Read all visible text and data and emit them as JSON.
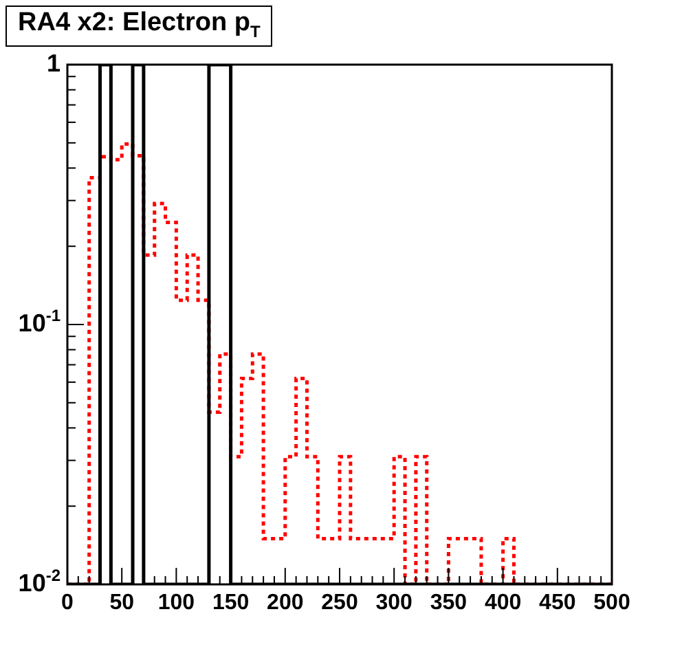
{
  "chart_data": {
    "type": "histogram",
    "title": "RA4 x2: Electron p$_{T}$",
    "bins": [
      0,
      10,
      20,
      30,
      40,
      50,
      60,
      70,
      80,
      90,
      100,
      110,
      120,
      130,
      140,
      150,
      160,
      170,
      180,
      190,
      200,
      210,
      220,
      230,
      240,
      250,
      260,
      270,
      280,
      290,
      300,
      310,
      320,
      330,
      340,
      350,
      360,
      370,
      380,
      390,
      400,
      410,
      420,
      430,
      440,
      450,
      460,
      470,
      480,
      490,
      500
    ],
    "series": [
      {
        "color": "#000000",
        "line_style": "solid",
        "values": [
          null,
          null,
          null,
          1,
          null,
          null,
          1,
          null,
          null,
          null,
          null,
          null,
          null,
          1,
          1,
          null,
          null,
          null,
          null,
          null,
          null,
          null,
          null,
          null,
          null,
          null,
          null,
          null,
          null,
          null,
          null,
          null,
          null,
          null,
          null,
          null,
          null,
          null,
          null,
          null,
          null,
          null,
          null,
          null,
          null,
          null,
          null,
          null,
          null,
          null
        ]
      },
      {
        "color": "#ff0000",
        "line_style": "dotted",
        "values": [
          null,
          null,
          0.367,
          0.442,
          0.431,
          0.495,
          0.446,
          0.185,
          0.292,
          0.247,
          0.124,
          0.185,
          0.124,
          0.046,
          0.077,
          0.031,
          0.062,
          0.077,
          0.015,
          0.015,
          0.031,
          0.062,
          0.031,
          0.015,
          0.015,
          0.031,
          0.015,
          0.015,
          0.015,
          0.015,
          0.031,
          null,
          0.031,
          null,
          null,
          0.015,
          0.015,
          0.015,
          null,
          null,
          0.015,
          null,
          null,
          null,
          null,
          null,
          null,
          null,
          null,
          null
        ]
      }
    ],
    "log": "y",
    "xlim": [
      0,
      500
    ],
    "ylim": [
      0.01,
      1
    ],
    "xticks": [
      0,
      {
        "value": 10,
        "label": null
      },
      {
        "value": 20,
        "label": null
      },
      {
        "value": 30,
        "label": null
      },
      {
        "value": 40,
        "label": null
      },
      50,
      {
        "value": 60,
        "label": null
      },
      {
        "value": 70,
        "label": null
      },
      {
        "value": 80,
        "label": null
      },
      {
        "value": 90,
        "label": null
      },
      100,
      {
        "value": 110,
        "label": null
      },
      {
        "value": 120,
        "label": null
      },
      {
        "value": 130,
        "label": null
      },
      {
        "value": 140,
        "label": null
      },
      150,
      {
        "value": 160,
        "label": null
      },
      {
        "value": 170,
        "label": null
      },
      {
        "value": 180,
        "label": null
      },
      {
        "value": 190,
        "label": null
      },
      200,
      {
        "value": 210,
        "label": null
      },
      {
        "value": 220,
        "label": null
      },
      {
        "value": 230,
        "label": null
      },
      {
        "value": 240,
        "label": null
      },
      250,
      {
        "value": 260,
        "label": null
      },
      {
        "value": 270,
        "label": null
      },
      {
        "value": 280,
        "label": null
      },
      {
        "value": 290,
        "label": null
      },
      300,
      {
        "value": 310,
        "label": null
      },
      {
        "value": 320,
        "label": null
      },
      {
        "value": 330,
        "label": null
      },
      {
        "value": 340,
        "label": null
      },
      350,
      {
        "value": 360,
        "label": null
      },
      {
        "value": 370,
        "label": null
      },
      {
        "value": 380,
        "label": null
      },
      {
        "value": 390,
        "label": null
      },
      400,
      {
        "value": 410,
        "label": null
      },
      {
        "value": 420,
        "label": null
      },
      {
        "value": 430,
        "label": null
      },
      {
        "value": 440,
        "label": null
      },
      450,
      {
        "value": 460,
        "label": null
      },
      {
        "value": 470,
        "label": null
      },
      {
        "value": 480,
        "label": null
      },
      {
        "value": 490,
        "label": null
      },
      500
    ],
    "yticks": [
      {
        "value": 0.01,
        "label": "10$^{-2}$"
      },
      {
        "value": 0.02,
        "label": null
      },
      {
        "value": 0.03,
        "label": null
      },
      {
        "value": 0.04,
        "label": null
      },
      {
        "value": 0.05,
        "label": null
      },
      {
        "value": 0.06,
        "label": null
      },
      {
        "value": 0.07,
        "label": null
      },
      {
        "value": 0.08,
        "label": null
      },
      {
        "value": 0.09,
        "label": null
      },
      {
        "value": 0.1,
        "label": "10$^{-1}$"
      },
      {
        "value": 0.2,
        "label": null
      },
      {
        "value": 0.3,
        "label": null
      },
      {
        "value": 0.4,
        "label": null
      },
      {
        "value": 0.5,
        "label": null
      },
      {
        "value": 0.6,
        "label": null
      },
      {
        "value": 0.7,
        "label": null
      },
      {
        "value": 0.8,
        "label": null
      },
      {
        "value": 0.9,
        "label": null
      },
      1
    ]
  }
}
